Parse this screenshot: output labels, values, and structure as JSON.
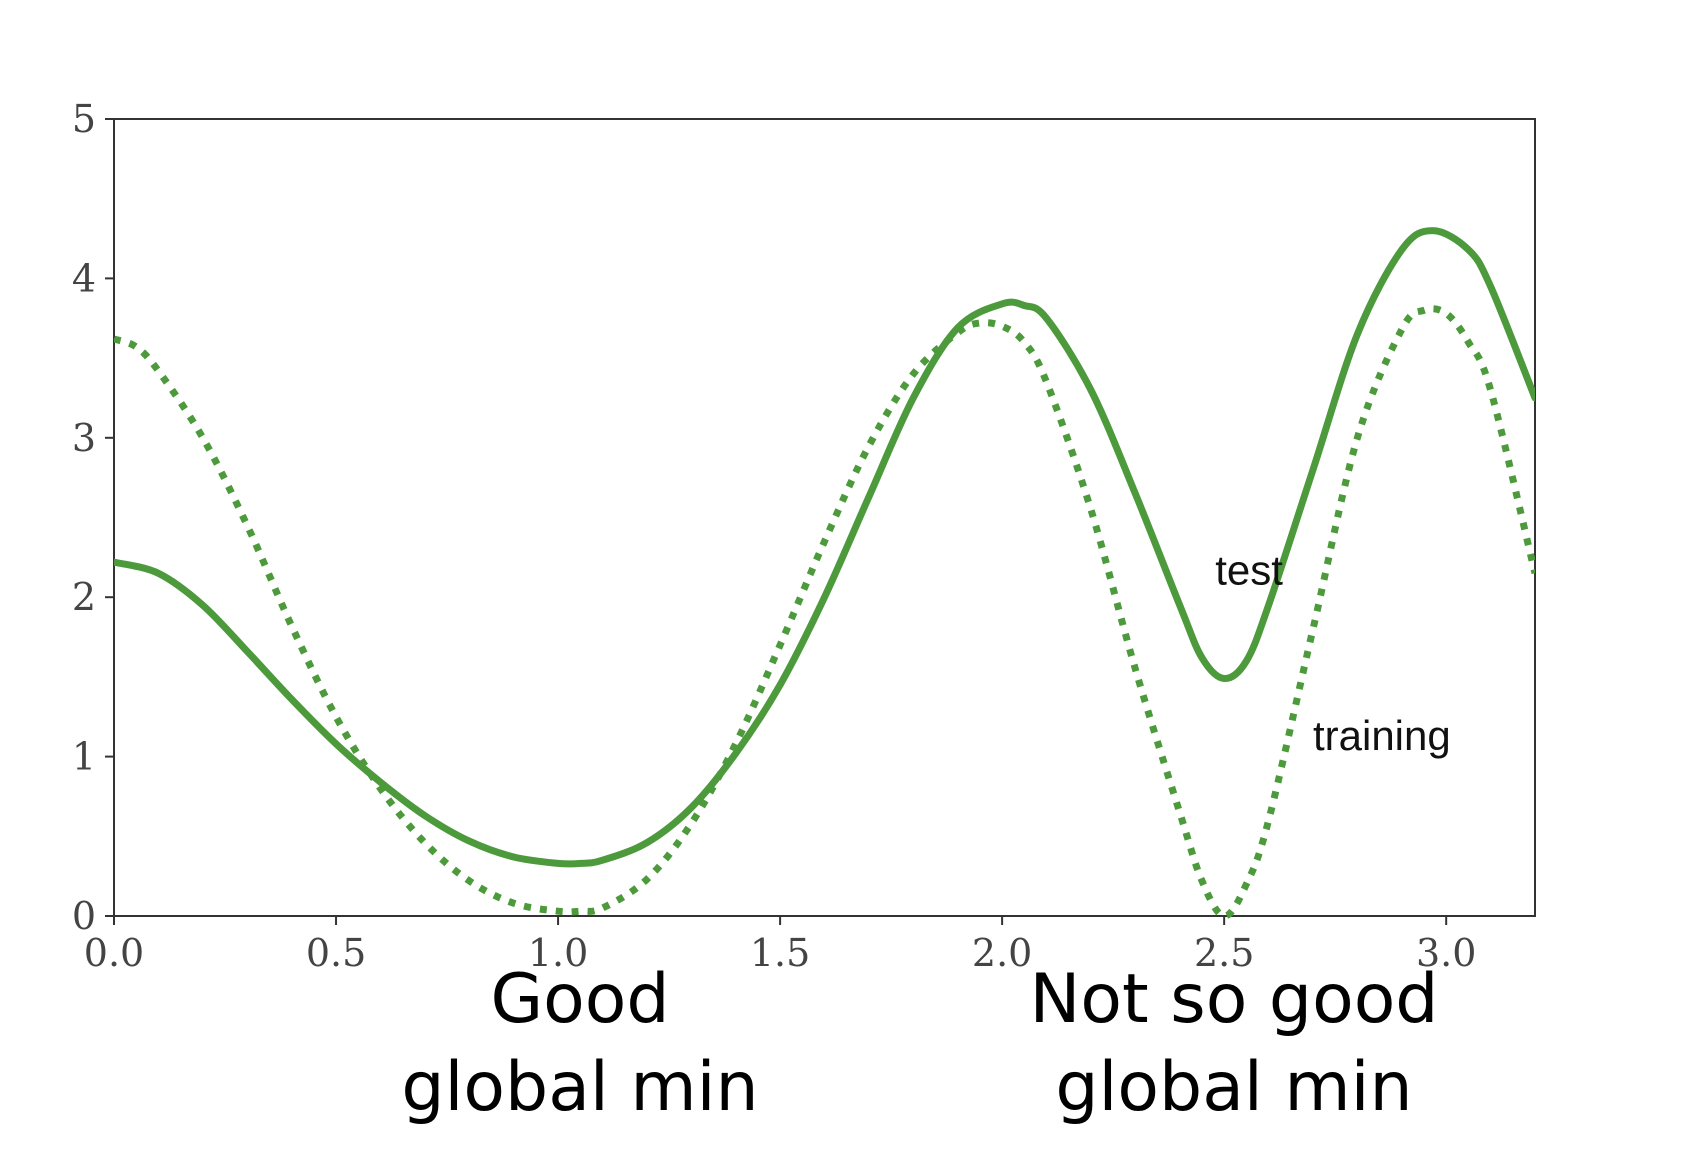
{
  "chart_data": {
    "type": "line",
    "xlim": [
      0,
      3.2
    ],
    "ylim": [
      0,
      5
    ],
    "xticks": [
      0.0,
      0.5,
      1.0,
      1.5,
      2.0,
      2.5,
      3.0
    ],
    "xtick_labels": [
      "0.0",
      "0.5",
      "1.0",
      "1.5",
      "2.0",
      "2.5",
      "3.0"
    ],
    "yticks": [
      0,
      1,
      2,
      3,
      4,
      5
    ],
    "ytick_labels": [
      "0",
      "1",
      "2",
      "3",
      "4",
      "5"
    ],
    "grid": false,
    "color": "#4c9a3b",
    "series": [
      {
        "name": "test",
        "style": "solid",
        "x": [
          0.0,
          0.1,
          0.2,
          0.3,
          0.4,
          0.5,
          0.6,
          0.7,
          0.8,
          0.9,
          1.0,
          1.05,
          1.1,
          1.2,
          1.3,
          1.4,
          1.5,
          1.6,
          1.7,
          1.8,
          1.9,
          2.0,
          2.05,
          2.1,
          2.2,
          2.3,
          2.4,
          2.45,
          2.5,
          2.55,
          2.6,
          2.7,
          2.8,
          2.9,
          2.97,
          3.05,
          3.1,
          3.2
        ],
        "y": [
          2.22,
          2.15,
          1.95,
          1.66,
          1.36,
          1.08,
          0.84,
          0.63,
          0.47,
          0.37,
          0.33,
          0.33,
          0.35,
          0.46,
          0.68,
          1.02,
          1.45,
          2.0,
          2.63,
          3.25,
          3.69,
          3.84,
          3.83,
          3.75,
          3.3,
          2.65,
          1.95,
          1.62,
          1.49,
          1.6,
          1.95,
          2.8,
          3.65,
          4.18,
          4.3,
          4.18,
          3.95,
          3.25
        ]
      },
      {
        "name": "training",
        "style": "dotted",
        "x": [
          0.0,
          0.05,
          0.1,
          0.2,
          0.3,
          0.4,
          0.5,
          0.6,
          0.7,
          0.8,
          0.9,
          1.0,
          1.05,
          1.1,
          1.2,
          1.3,
          1.4,
          1.5,
          1.6,
          1.7,
          1.8,
          1.9,
          1.95,
          2.0,
          2.05,
          2.1,
          2.2,
          2.3,
          2.4,
          2.45,
          2.5,
          2.55,
          2.6,
          2.7,
          2.8,
          2.9,
          2.95,
          3.0,
          3.05,
          3.1,
          3.2
        ],
        "y": [
          3.62,
          3.57,
          3.42,
          3.0,
          2.45,
          1.82,
          1.25,
          0.8,
          0.46,
          0.22,
          0.08,
          0.03,
          0.03,
          0.05,
          0.23,
          0.58,
          1.08,
          1.7,
          2.35,
          2.95,
          3.4,
          3.66,
          3.72,
          3.7,
          3.6,
          3.35,
          2.55,
          1.55,
          0.65,
          0.22,
          0.0,
          0.2,
          0.6,
          1.8,
          3.0,
          3.68,
          3.8,
          3.78,
          3.6,
          3.3,
          2.15
        ]
      }
    ],
    "annotations": [
      {
        "text": "test",
        "x": 2.48,
        "y": 2.08
      },
      {
        "text": "training",
        "x": 2.7,
        "y": 1.04
      }
    ]
  },
  "captions": {
    "left_line1": "Good",
    "left_line2": "global min",
    "right_line1": "Not so good",
    "right_line2": "global min"
  }
}
